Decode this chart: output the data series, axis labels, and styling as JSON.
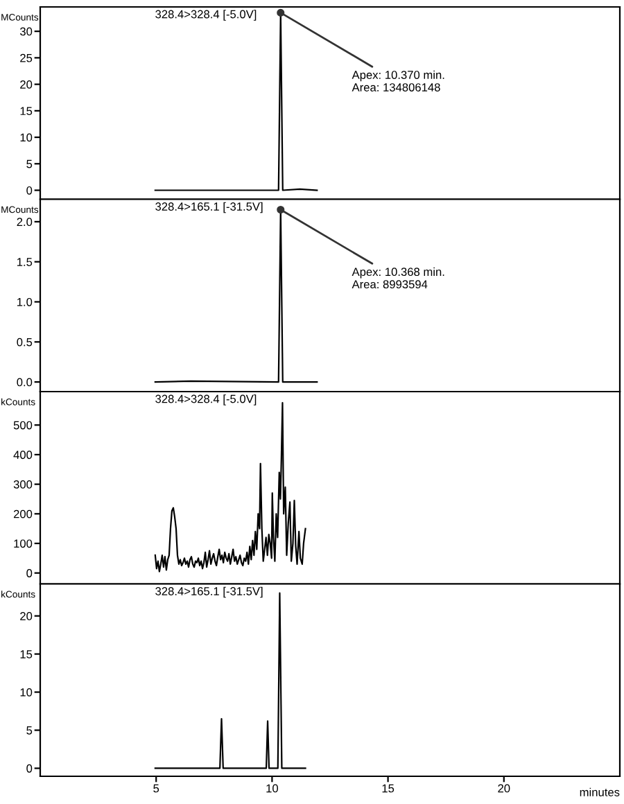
{
  "chart_data": [
    {
      "type": "line",
      "title": "328.4>328.4 [-5.0V]",
      "ylabel": "MCounts",
      "xlim": [
        0,
        25
      ],
      "xticks": [
        5,
        10,
        15,
        20
      ],
      "ylim": [
        -1.7,
        34.6
      ],
      "yticks": [
        0,
        5,
        10,
        15,
        20,
        25,
        30
      ],
      "tick_labels": "y",
      "grid": false,
      "annotations": [
        {
          "text": "Apex: 10.370 min.\nArea: 134806148",
          "x": 10.37,
          "y": 33.5
        }
      ],
      "series": [
        {
          "color": "#000000",
          "x": [
            4.96,
            10.28,
            10.37,
            10.46,
            11.2,
            11.94
          ],
          "values": [
            0,
            0,
            33.5,
            0,
            0.2,
            0
          ]
        }
      ]
    },
    {
      "type": "line",
      "title": "328.4>165.1 [-31.5V]",
      "ylabel": "MCounts",
      "xlim": [
        0,
        25
      ],
      "xticks": [
        5,
        10,
        15,
        20
      ],
      "ylim": [
        -0.12,
        2.28
      ],
      "yticks": [
        {
          "value": 0,
          "label": "0.0"
        },
        {
          "value": 0.5,
          "label": "0.5"
        },
        {
          "value": 1,
          "label": "1.0"
        },
        {
          "value": 1.5,
          "label": "1.5"
        },
        {
          "value": 2,
          "label": "2.0"
        }
      ],
      "tick_labels": "y",
      "grid": false,
      "annotations": [
        {
          "text": "Apex: 10.368 min.\nArea: 8993594",
          "x": 10.37,
          "y": 2.15
        }
      ],
      "series": [
        {
          "color": "#000000",
          "x": [
            4.96,
            6.5,
            10.28,
            10.37,
            10.46,
            11.94
          ],
          "values": [
            0,
            0.01,
            0,
            2.15,
            0,
            0
          ]
        }
      ]
    },
    {
      "type": "line",
      "title": "328.4>328.4 [-5.0V]",
      "ylabel": "kCounts",
      "xlim": [
        0,
        25
      ],
      "xticks": [
        5,
        10,
        15,
        20
      ],
      "ylim": [
        -37,
        613
      ],
      "yticks": [
        0,
        100,
        200,
        300,
        400,
        500
      ],
      "tick_labels": "y",
      "grid": false,
      "series": [
        {
          "color": "#000000",
          "x": [
            4.96,
            5.02,
            5.08,
            5.14,
            5.2,
            5.26,
            5.32,
            5.38,
            5.44,
            5.5,
            5.56,
            5.62,
            5.68,
            5.74,
            5.8,
            5.86,
            5.92,
            5.98,
            6.04,
            6.1,
            6.16,
            6.22,
            6.28,
            6.34,
            6.4,
            6.46,
            6.52,
            6.58,
            6.64,
            6.7,
            6.76,
            6.82,
            6.88,
            6.94,
            7.0,
            7.06,
            7.12,
            7.18,
            7.24,
            7.3,
            7.36,
            7.42,
            7.48,
            7.54,
            7.6,
            7.66,
            7.72,
            7.78,
            7.84,
            7.9,
            7.96,
            8.02,
            8.08,
            8.14,
            8.2,
            8.26,
            8.32,
            8.38,
            8.44,
            8.5,
            8.56,
            8.62,
            8.68,
            8.74,
            8.8,
            8.86,
            8.92,
            8.98,
            9.04,
            9.1,
            9.16,
            9.22,
            9.28,
            9.34,
            9.4,
            9.46,
            9.5,
            9.56,
            9.62,
            9.68,
            9.74,
            9.8,
            9.86,
            9.92,
            9.98,
            10.01,
            10.06,
            10.12,
            10.18,
            10.24,
            10.31,
            10.36,
            10.4,
            10.45,
            10.5,
            10.57,
            10.63,
            10.7,
            10.77,
            10.83,
            10.9,
            10.96,
            11.02,
            11.08,
            11.16,
            11.22,
            11.3,
            11.36,
            11.44
          ],
          "values": [
            60,
            15,
            40,
            5,
            30,
            60,
            20,
            55,
            10,
            45,
            60,
            150,
            210,
            220,
            190,
            150,
            60,
            30,
            45,
            25,
            35,
            50,
            30,
            40,
            20,
            45,
            55,
            30,
            20,
            40,
            35,
            50,
            25,
            40,
            15,
            35,
            70,
            20,
            45,
            75,
            30,
            50,
            65,
            40,
            25,
            55,
            80,
            45,
            60,
            35,
            70,
            50,
            40,
            65,
            30,
            55,
            80,
            40,
            55,
            30,
            45,
            60,
            35,
            25,
            50,
            40,
            70,
            30,
            90,
            45,
            110,
            60,
            140,
            80,
            200,
            150,
            370,
            150,
            40,
            80,
            120,
            60,
            130,
            100,
            50,
            270,
            120,
            40,
            200,
            120,
            340,
            250,
            380,
            575,
            200,
            290,
            60,
            170,
            240,
            40,
            100,
            245,
            90,
            30,
            140,
            50,
            30,
            100,
            150
          ]
        }
      ]
    },
    {
      "type": "line",
      "title": "328.4>165.1 [-31.5V]",
      "ylabel": "kCounts",
      "xlabel": "minutes",
      "xlim": [
        0,
        25
      ],
      "xticks": [
        5,
        10,
        15,
        20
      ],
      "ylim": [
        -1.05,
        24.2
      ],
      "yticks": [
        0,
        5,
        10,
        15,
        20
      ],
      "grid": false,
      "series": [
        {
          "color": "#000000",
          "x": [
            4.96,
            7.75,
            7.82,
            7.89,
            9.75,
            9.81,
            9.87,
            10.25,
            10.33,
            10.42,
            11.44
          ],
          "values": [
            0,
            0,
            6.5,
            0,
            0,
            6.2,
            0,
            0,
            23,
            0,
            0
          ]
        }
      ]
    }
  ]
}
